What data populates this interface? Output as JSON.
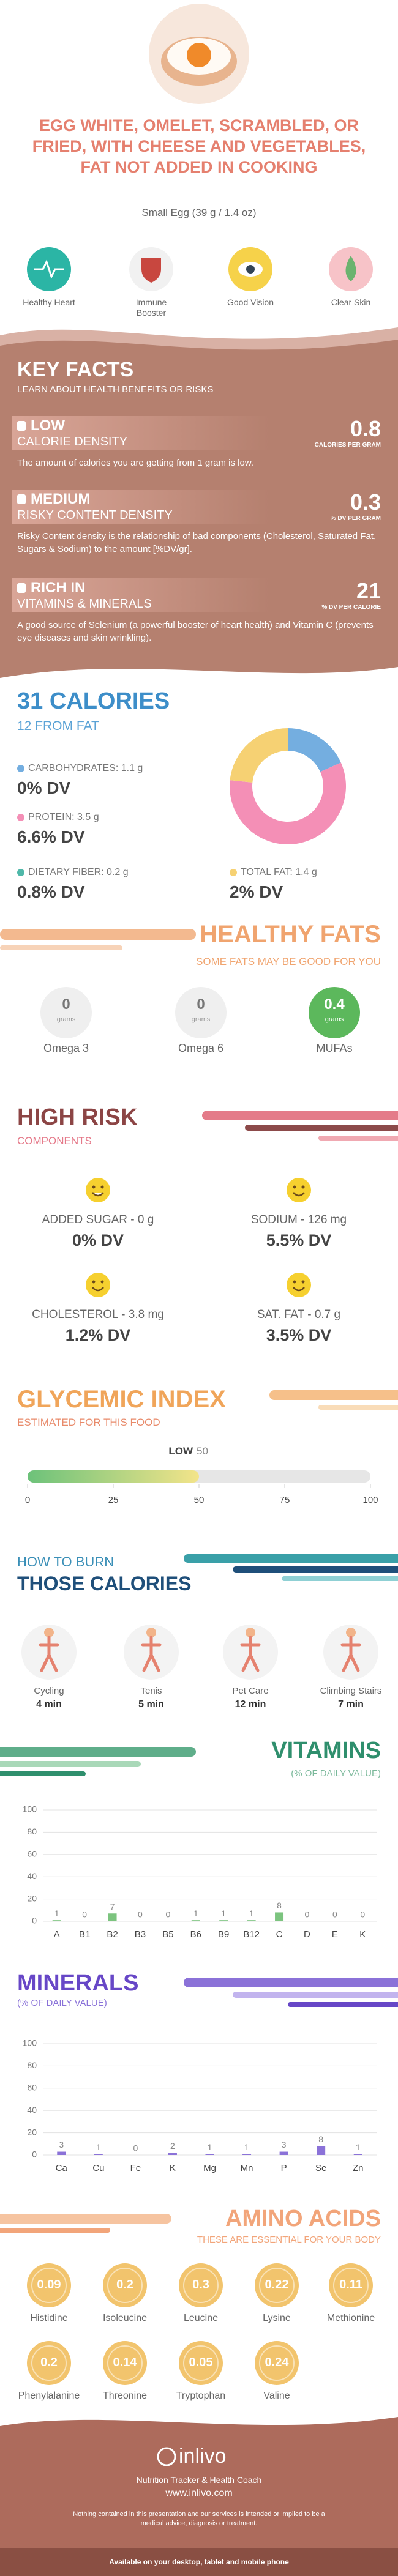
{
  "header": {
    "title": "EGG WHITE, OMELET, SCRAMBLED, OR FRIED, WITH CHEESE AND VEGETABLES, FAT NOT ADDED IN COOKING",
    "serving": "Small Egg (39 g / 1.4 oz)"
  },
  "benefits": [
    "Healthy Heart",
    "Immune Booster",
    "Good Vision",
    "Clear Skin"
  ],
  "key_facts": {
    "title": "KEY FACTS",
    "subtitle": "LEARN ABOUT HEALTH BENEFITS OR RISKS",
    "items": [
      {
        "level": "LOW",
        "name": "CALORIE DENSITY",
        "value": 0.8,
        "unit": "CALORIES PER GRAM",
        "description": "The amount of calories you are getting from 1 gram is low."
      },
      {
        "level": "MEDIUM",
        "name": "RISKY CONTENT DENSITY",
        "value": 0.3,
        "unit": "% DV PER GRAM",
        "description": "Risky Content density is the relationship of bad components (Cholesterol, Saturated Fat, Sugars & Sodium) to the amount [%DV/gr]."
      },
      {
        "level": "RICH IN",
        "name": "VITAMINS & MINERALS",
        "value": 21,
        "unit": "% DV PER CALORIE",
        "description": "A good source of Selenium (a powerful booster of heart health) and Vitamin C (prevents eye diseases and skin wrinkling)."
      }
    ]
  },
  "calories": {
    "title": "31 CALORIES",
    "subtitle": "12 FROM FAT",
    "nutrients": [
      {
        "label": "CARBOHYDRATES: 1.1 g",
        "grams": 1.1,
        "dv": "0% DV",
        "color": "#74aee0"
      },
      {
        "label": "PROTEIN: 3.5 g",
        "grams": 3.5,
        "dv": "6.6% DV",
        "color": "#f48fb6"
      },
      {
        "label": "TOTAL FAT: 1.4 g",
        "grams": 1.4,
        "dv": "2% DV",
        "color": "#f6d173"
      }
    ],
    "dietary_fiber": {
      "label": "DIETARY FIBER: 0.2 g",
      "dv": "0.8% DV",
      "color": "#4fb8a9"
    }
  },
  "healthy_fats": {
    "title": "HEALTHY FATS",
    "subtitle": "SOME FATS MAY BE GOOD FOR YOU",
    "unit": "grams",
    "items": [
      {
        "name": "Omega 3",
        "value": 0
      },
      {
        "name": "Omega 6",
        "value": 0
      },
      {
        "name": "MUFAs",
        "value": 0.4
      }
    ]
  },
  "high_risk": {
    "title": "HIGH RISK",
    "subtitle": "COMPONENTS",
    "items": [
      {
        "label": "ADDED SUGAR - 0 g",
        "dv": "0% DV"
      },
      {
        "label": "SODIUM - 126 mg",
        "dv": "5.5% DV"
      },
      {
        "label": "CHOLESTEROL - 3.8 mg",
        "dv": "1.2% DV"
      },
      {
        "label": "SAT. FAT - 0.7 g",
        "dv": "3.5% DV"
      }
    ]
  },
  "glycemic": {
    "title": "GLYCEMIC INDEX",
    "subtitle": "ESTIMATED FOR THIS FOOD",
    "level": "LOW",
    "value": 50,
    "xlim": [
      0,
      100
    ],
    "xticks": [
      0,
      25,
      50,
      75,
      100
    ]
  },
  "burn": {
    "title": "HOW TO BURN",
    "subtitle": "THOSE CALORIES",
    "activities": [
      {
        "name": "Cycling",
        "time": "4 min"
      },
      {
        "name": "Tenis",
        "time": "5 min"
      },
      {
        "name": "Pet Care",
        "time": "12 min"
      },
      {
        "name": "Climbing Stairs",
        "time": "7 min"
      }
    ]
  },
  "vitamins": {
    "type": "bar",
    "title": "VITAMINS",
    "subtitle": "(% OF DAILY VALUE)",
    "categories": [
      "A",
      "B1",
      "B2",
      "B3",
      "B5",
      "B6",
      "B9",
      "B12",
      "C",
      "D",
      "E",
      "K"
    ],
    "values": [
      1,
      0,
      7,
      0,
      0,
      1,
      1,
      1,
      8,
      0,
      0,
      0
    ],
    "color": "#7cc47f",
    "ylim": [
      0,
      100
    ],
    "yticks": [
      0,
      20,
      40,
      60,
      80,
      100
    ]
  },
  "minerals": {
    "type": "bar",
    "title": "MINERALS",
    "subtitle": "(% OF DAILY VALUE)",
    "categories": [
      "Ca",
      "Cu",
      "Fe",
      "K",
      "Mg",
      "Mn",
      "P",
      "Se",
      "Zn"
    ],
    "values": [
      3,
      1,
      0,
      2,
      1,
      1,
      3,
      8,
      1
    ],
    "color": "#8b72d8",
    "ylim": [
      0,
      100
    ],
    "yticks": [
      0,
      20,
      40,
      60,
      80,
      100
    ]
  },
  "amino_acids": {
    "title": "AMINO ACIDS",
    "subtitle": "THESE ARE ESSENTIAL FOR YOUR BODY",
    "items": [
      {
        "name": "Histidine",
        "value": 0.09
      },
      {
        "name": "Isoleucine",
        "value": 0.2
      },
      {
        "name": "Leucine",
        "value": 0.3
      },
      {
        "name": "Lysine",
        "value": 0.22
      },
      {
        "name": "Methionine",
        "value": 0.11
      },
      {
        "name": "Phenylalanine",
        "value": 0.2
      },
      {
        "name": "Threonine",
        "value": 0.14
      },
      {
        "name": "Tryptophan",
        "value": 0.05
      },
      {
        "name": "Valine",
        "value": 0.24
      }
    ]
  },
  "footer": {
    "brand": "inlivo",
    "tagline": "Nutrition Tracker & Health Coach",
    "url": "www.inlivo.com",
    "disclaimer": "Nothing contained in this presentation and our services is intended or implied to be a medical advice, diagnosis or treatment.",
    "availability": "Available on your desktop, tablet and mobile phone"
  }
}
